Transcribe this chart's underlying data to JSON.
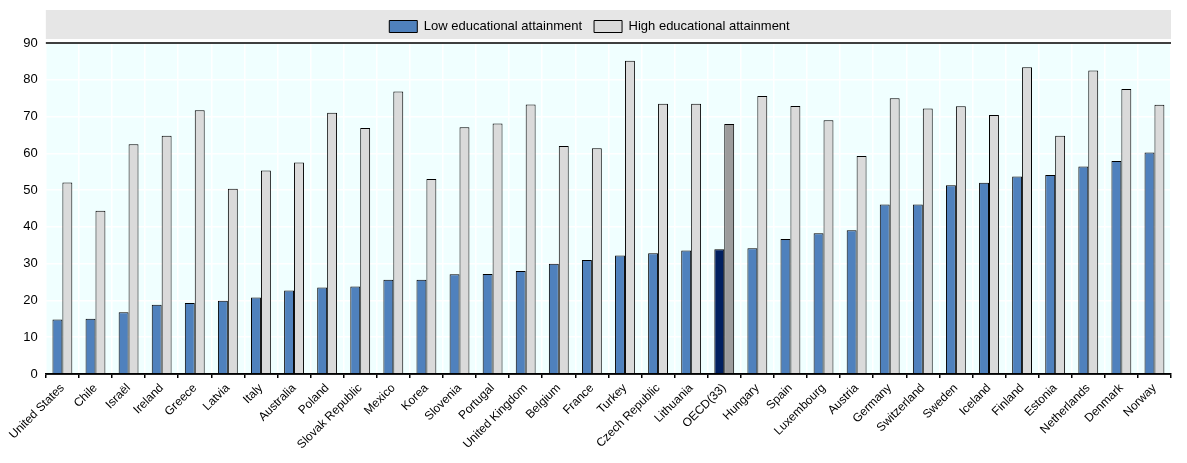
{
  "chart_data": {
    "type": "bar",
    "categories": [
      "United States",
      "Chile",
      "Israël",
      "Ireland",
      "Greece",
      "Latvia",
      "Italy",
      "Australia",
      "Poland",
      "Slovak Republic",
      "Mexico",
      "Korea",
      "Slovenia",
      "Portugal",
      "United Kingdom",
      "Belgium",
      "France",
      "Turkey",
      "Czech Republic",
      "Lithuania",
      "OECD(33)",
      "Hungary",
      "Spain",
      "Luxembourg",
      "Austria",
      "Germany",
      "Switzerland",
      "Sweden",
      "Iceland",
      "Finland",
      "Estonia",
      "Netherlands",
      "Denmark",
      "Norway"
    ],
    "series": [
      {
        "name": "Low educational attainment",
        "color": "#4f81bd",
        "colors": [
          "#4f81bd",
          "#4f81bd",
          "#4f81bd",
          "#4f81bd",
          "#4f81bd",
          "#4f81bd",
          "#4f81bd",
          "#4f81bd",
          "#4f81bd",
          "#4f81bd",
          "#4f81bd",
          "#4f81bd",
          "#4f81bd",
          "#4f81bd",
          "#4f81bd",
          "#4f81bd",
          "#4f81bd",
          "#4f81bd",
          "#4f81bd",
          "#4f81bd",
          "#002060",
          "#4f81bd",
          "#4f81bd",
          "#4f81bd",
          "#4f81bd",
          "#4f81bd",
          "#4f81bd",
          "#4f81bd",
          "#4f81bd",
          "#4f81bd",
          "#4f81bd",
          "#4f81bd",
          "#4f81bd",
          "#4f81bd"
        ],
        "values": [
          14.8,
          15,
          16.8,
          18.8,
          19.3,
          19.9,
          20.8,
          22.7,
          23.5,
          23.8,
          25.6,
          25.6,
          27.1,
          27.2,
          28,
          30,
          31,
          32.2,
          32.8,
          33.6,
          33.9,
          34.2,
          36.7,
          38.3,
          39.1,
          46.1,
          46.1,
          51.3,
          52,
          53.7,
          54.1,
          56.4,
          57.9,
          60.2
        ]
      },
      {
        "name": "High educational attainment",
        "color": "#dadada",
        "colors": [
          "#dadada",
          "#dadada",
          "#dadada",
          "#dadada",
          "#dadada",
          "#dadada",
          "#dadada",
          "#dadada",
          "#dadada",
          "#dadada",
          "#dadada",
          "#dadada",
          "#dadada",
          "#dadada",
          "#dadada",
          "#dadada",
          "#dadada",
          "#dadada",
          "#dadada",
          "#dadada",
          "#9c9c9c",
          "#dadada",
          "#dadada",
          "#dadada",
          "#dadada",
          "#dadada",
          "#dadada",
          "#dadada",
          "#dadada",
          "#dadada",
          "#dadada",
          "#dadada",
          "#dadada",
          "#dadada"
        ],
        "values": [
          52.1,
          44.4,
          62.5,
          64.8,
          71.7,
          50.4,
          55.3,
          57.5,
          71.0,
          66.9,
          76.8,
          53.0,
          67.1,
          68.1,
          73.3,
          62.0,
          61.4,
          85.2,
          73.5,
          73.5,
          68.0,
          75.6,
          72.9,
          69.0,
          59.3,
          75.0,
          72.2,
          72.8,
          70.4,
          83.4,
          64.8,
          82.5,
          77.5,
          73.2
        ]
      }
    ],
    "ylim": [
      0,
      90
    ],
    "yticks": [
      0,
      10,
      20,
      30,
      40,
      50,
      60,
      70,
      80,
      90
    ],
    "grid": true,
    "legend": "top"
  }
}
